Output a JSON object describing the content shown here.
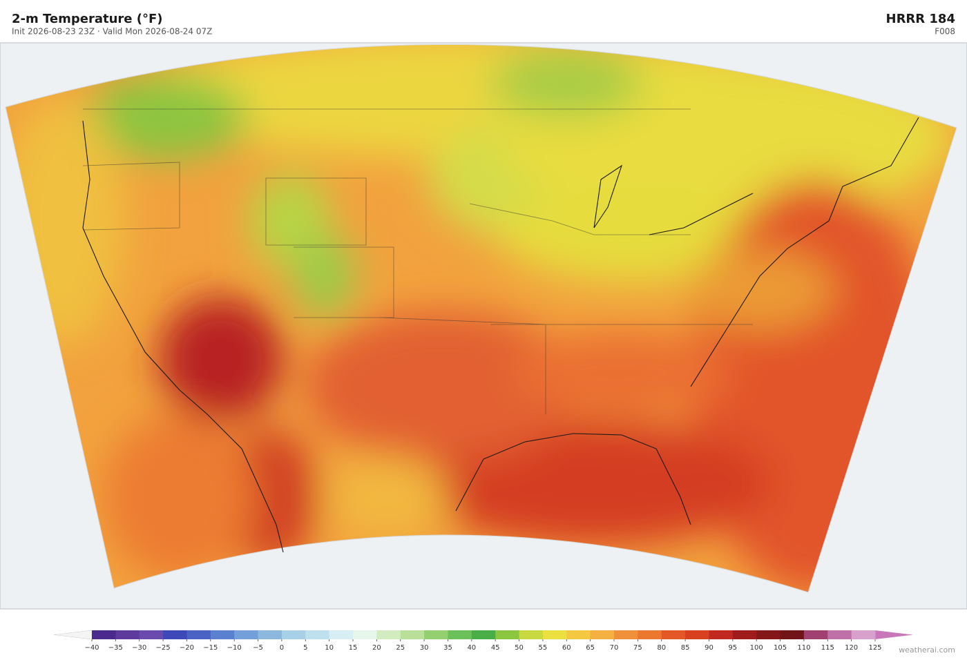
{
  "header": {
    "title": "2-m Temperature  (°F)",
    "subtitle": "Init 2026-08-23 23Z   ·   Valid Mon 2026-08-24 07Z",
    "model": "HRRR  184",
    "forecast_hour": "F008"
  },
  "colorbar": {
    "ticks": [
      {
        "value": -40,
        "label": "−40"
      },
      {
        "value": -35,
        "label": "−35"
      },
      {
        "value": -30,
        "label": "−30"
      },
      {
        "value": -25,
        "label": "−25"
      },
      {
        "value": -20,
        "label": "−20"
      },
      {
        "value": -15,
        "label": "−15"
      },
      {
        "value": -10,
        "label": "−10"
      },
      {
        "value": -5,
        "label": "−5"
      },
      0,
      5,
      10,
      15,
      20,
      25,
      30,
      35,
      40,
      45,
      50,
      55,
      60,
      65,
      70,
      75,
      80,
      85,
      90,
      95,
      100,
      105,
      110,
      115,
      120,
      125
    ],
    "colors": [
      "#4a2a8c",
      "#5d3a9b",
      "#6a4aad",
      "#3f48b8",
      "#4a62c4",
      "#5a80d0",
      "#73a0d8",
      "#8cb8de",
      "#a8d0e6",
      "#bfe0ee",
      "#d6eef4",
      "#e6f6ea",
      "#d2ecc0",
      "#b8e098",
      "#94d070",
      "#6cc05a",
      "#4aae48",
      "#8cc540",
      "#c8d840",
      "#ece040",
      "#f4c840",
      "#f4b040",
      "#f09038",
      "#ec7830",
      "#e45828",
      "#d84020",
      "#c02820",
      "#a01c1c",
      "#841818",
      "#701418",
      "#a04070",
      "#c070a8",
      "#d8a0cc"
    ],
    "under_color": "#f4f4f4",
    "over_color": "#c878b8"
  },
  "credit": "weatherai.com"
}
